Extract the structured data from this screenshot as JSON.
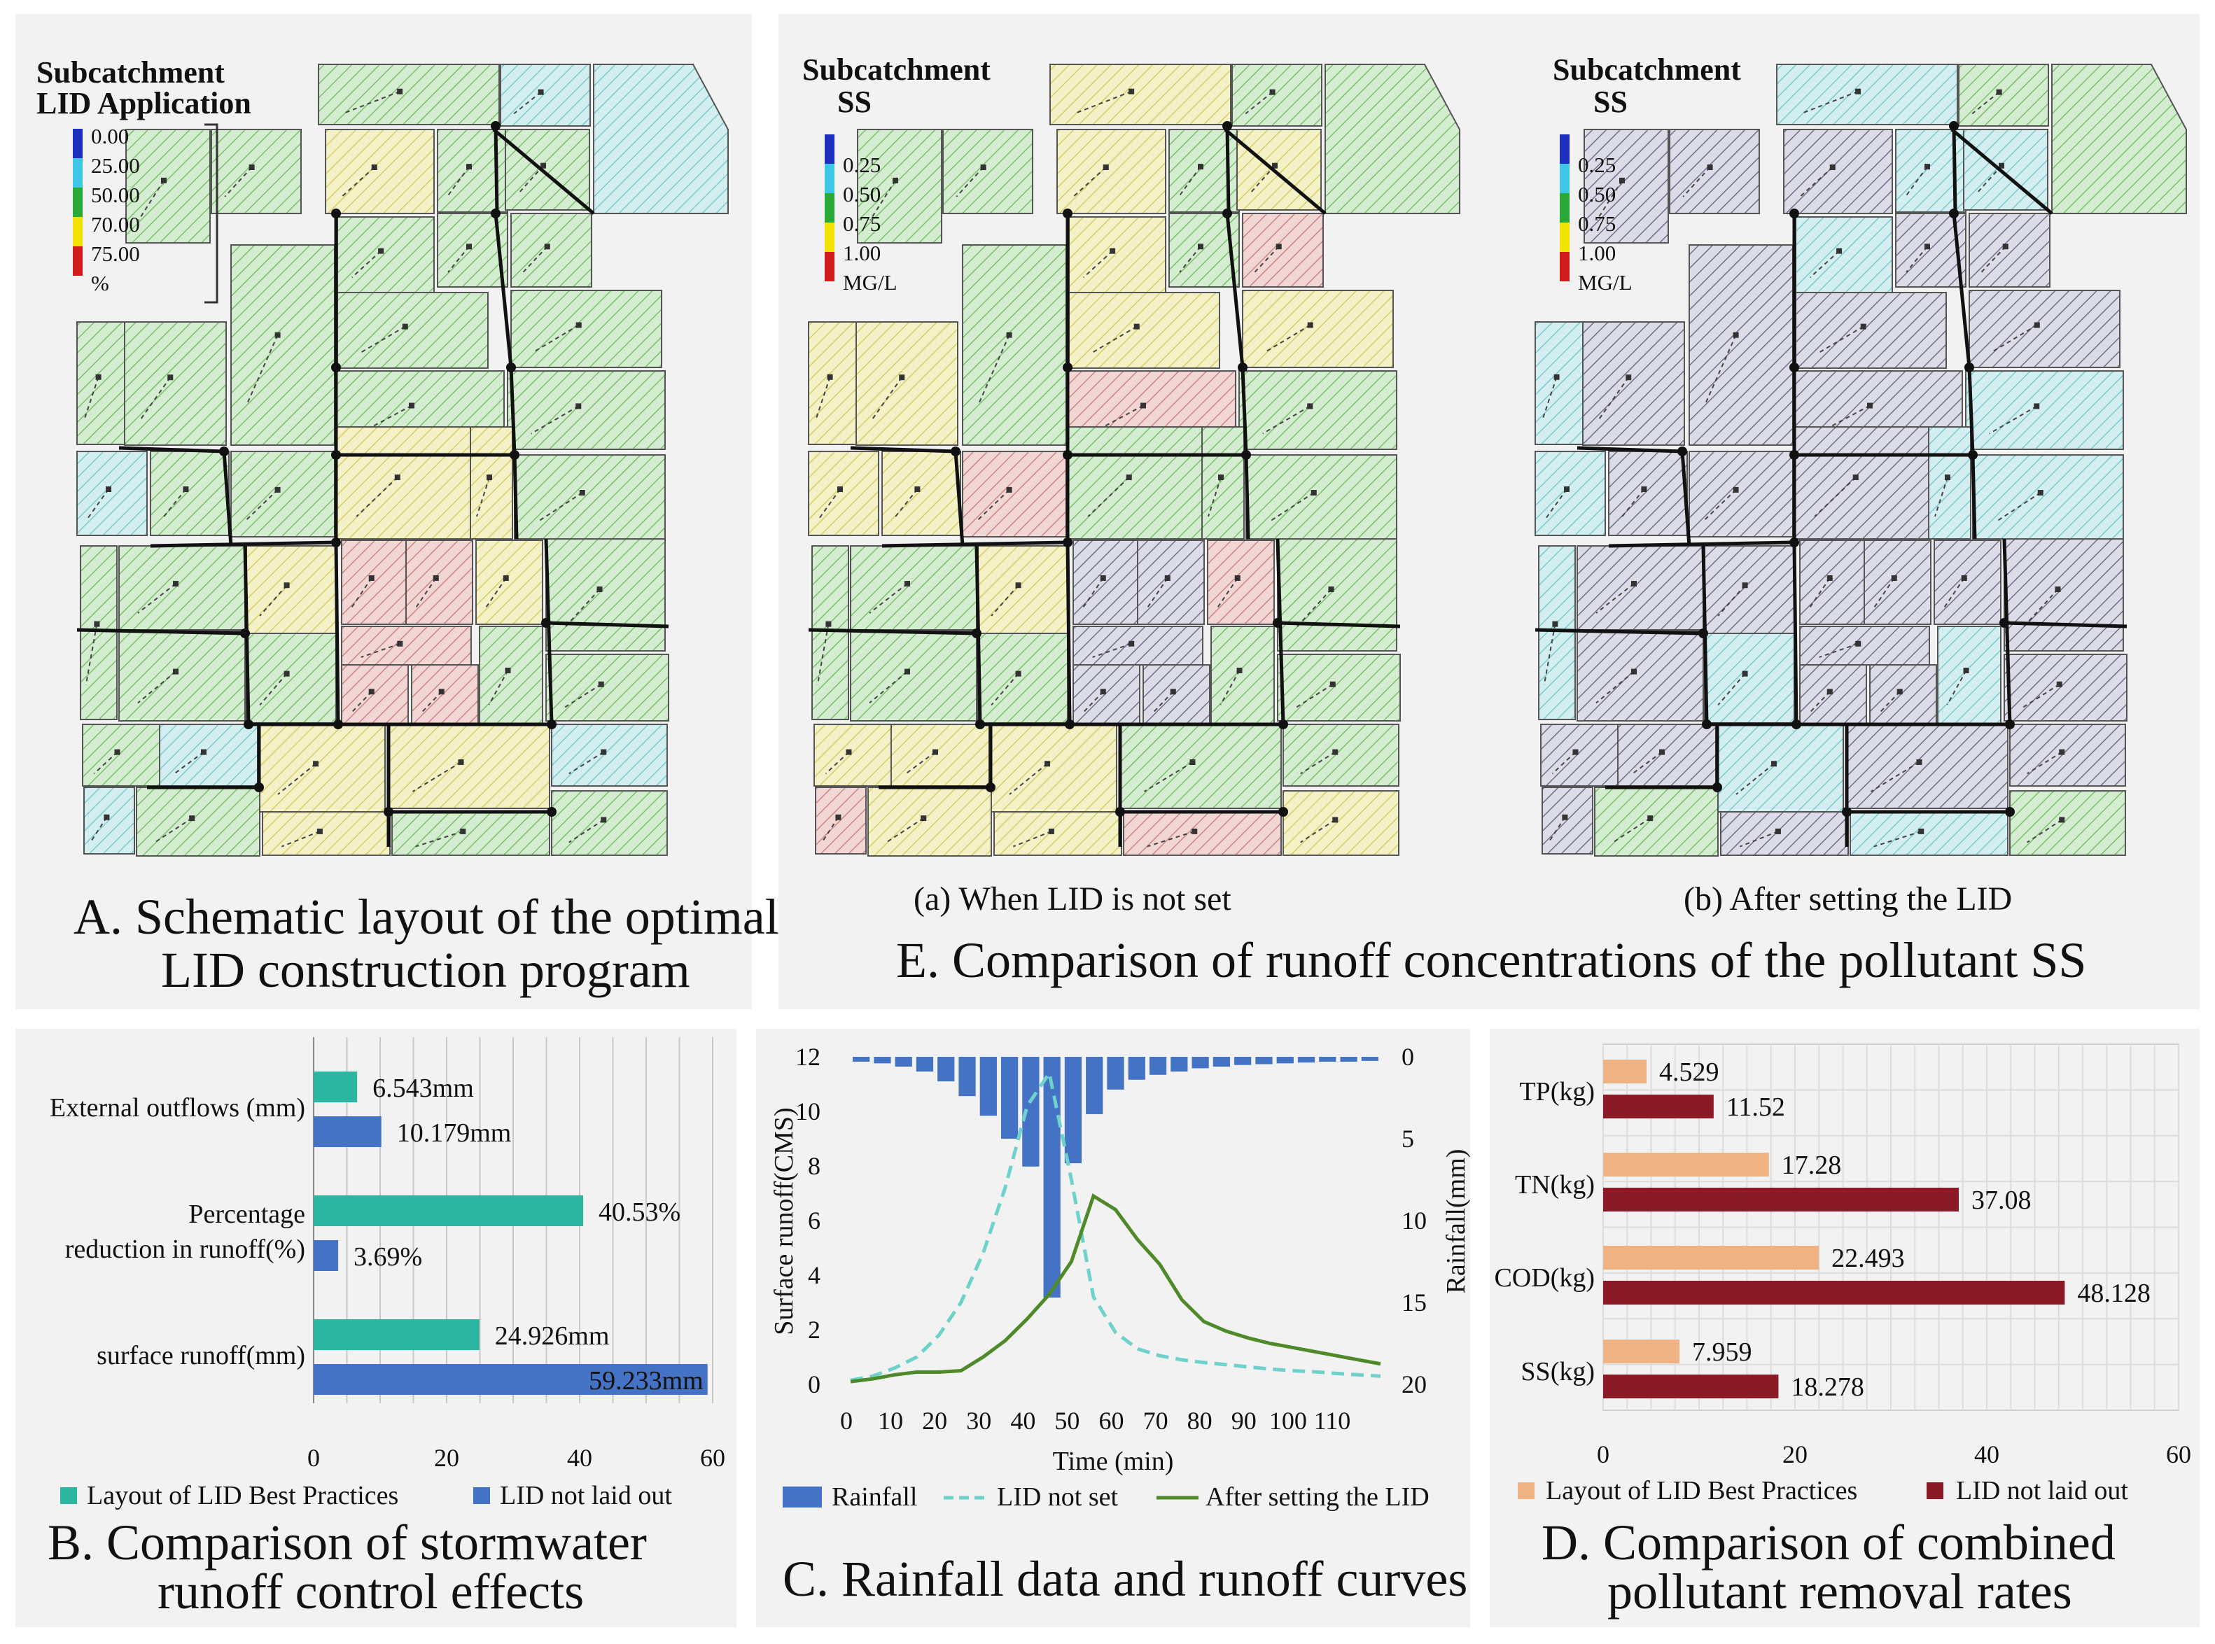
{
  "colors": {
    "green": "#2cb5a0",
    "blue": "#4472c4",
    "orange": "#f0b183",
    "darkred": "#8b1a26",
    "rain": "#4472c4",
    "lid_not_set": "#6fd1cc",
    "after_lid": "#4f8a2a",
    "map_bg": "#f2f2f2"
  },
  "panel_a": {
    "legend_title_1": "Subcatchment",
    "legend_title_2": "LID Application",
    "legend_values": [
      "0.00",
      "25.00",
      "50.00",
      "70.00",
      "75.00",
      "%"
    ],
    "caption_1": "A. Schematic layout of the optimal",
    "caption_2": "LID construction program"
  },
  "panel_e": {
    "map_a": {
      "legend_title_1": "Subcatchment",
      "legend_title_2": "SS",
      "legend_values": [
        "0.25",
        "0.50",
        "0.75",
        "1.00",
        "MG/L"
      ],
      "subcaption": "(a) When LID is not set"
    },
    "map_b": {
      "legend_title_1": "Subcatchment",
      "legend_title_2": "SS",
      "legend_values": [
        "0.25",
        "0.50",
        "0.75",
        "1.00",
        "MG/L"
      ],
      "subcaption": "(b) After setting the LID"
    },
    "caption": "E. Comparison of runoff concentrations of the pollutant SS"
  },
  "panel_b": {
    "caption_1": "B. Comparison of stormwater",
    "caption_2": "runoff control effects"
  },
  "panel_c": {
    "caption": "C. Rainfall data and runoff curves"
  },
  "panel_d": {
    "caption_1": "D. Comparison of combined",
    "caption_2": "pollutant removal rates"
  },
  "chart_data": [
    {
      "id": "B",
      "type": "bar",
      "orientation": "horizontal",
      "categories": [
        "External outflows (mm)",
        "Percentage reduction in runoff(%)",
        "surface runoff(mm)"
      ],
      "category_lines": [
        [
          "External outflows (mm)"
        ],
        [
          "Percentage",
          "reduction in runoff(%)"
        ],
        [
          "surface runoff(mm)"
        ]
      ],
      "series": [
        {
          "name": "Layout of LID Best Practices",
          "values": [
            6.543,
            40.53,
            24.926
          ],
          "labels": [
            "6.543mm",
            "40.53%",
            "24.926mm"
          ]
        },
        {
          "name": "LID not laid out",
          "values": [
            10.179,
            3.69,
            59.233
          ],
          "labels": [
            "10.179mm",
            "3.69%",
            "59.233mm"
          ]
        }
      ],
      "xlim": [
        0,
        60
      ],
      "xticks": [
        "0",
        "20",
        "40",
        "60"
      ]
    },
    {
      "id": "C",
      "type": "bar+line",
      "x": [
        0,
        5,
        10,
        15,
        20,
        25,
        30,
        35,
        40,
        45,
        50,
        55,
        60,
        65,
        70,
        75,
        80,
        85,
        90,
        95,
        100,
        105,
        110,
        115,
        120
      ],
      "xticks": [
        "0",
        "10",
        "20",
        "30",
        "40",
        "50",
        "60",
        "70",
        "80",
        "90",
        "100",
        "110"
      ],
      "xtick_values": [
        0,
        10,
        20,
        30,
        40,
        50,
        60,
        70,
        80,
        90,
        100,
        110
      ],
      "xlabel": "Time (min)",
      "ylabel": "Surface runoff(CMS)",
      "ylim": [
        0,
        12
      ],
      "yticks": [
        "0",
        "2",
        "4",
        "6",
        "8",
        "10",
        "12"
      ],
      "y2label": "Rainfall(mm)",
      "y2lim": [
        0,
        20
      ],
      "y2ticks": [
        "0",
        "5",
        "10",
        "15",
        "20"
      ],
      "y2_inverted": true,
      "series": [
        {
          "name": "Rainfall",
          "kind": "bar",
          "axis": "y2",
          "values": [
            0.3,
            0.4,
            0.6,
            0.9,
            1.5,
            2.4,
            3.6,
            5.0,
            6.7,
            14.7,
            6.5,
            3.5,
            2.0,
            1.4,
            1.1,
            0.9,
            0.7,
            0.6,
            0.5,
            0.45,
            0.4,
            0.35,
            0.3,
            0.3,
            0.25
          ]
        },
        {
          "name": "LID not set",
          "kind": "line",
          "style": "dashed",
          "values": [
            0.15,
            0.3,
            0.6,
            1.0,
            1.8,
            3.0,
            4.8,
            7.2,
            10.2,
            11.4,
            7.5,
            3.2,
            1.9,
            1.3,
            1.05,
            0.9,
            0.8,
            0.72,
            0.64,
            0.56,
            0.5,
            0.46,
            0.4,
            0.35,
            0.3
          ]
        },
        {
          "name": "After setting the LID",
          "kind": "line",
          "style": "solid",
          "values": [
            0.1,
            0.2,
            0.35,
            0.45,
            0.45,
            0.5,
            1.0,
            1.6,
            2.4,
            3.3,
            4.5,
            6.9,
            6.4,
            5.3,
            4.4,
            3.1,
            2.3,
            1.95,
            1.7,
            1.5,
            1.35,
            1.2,
            1.05,
            0.9,
            0.75
          ]
        }
      ]
    },
    {
      "id": "D",
      "type": "bar",
      "orientation": "horizontal",
      "categories": [
        "TP(kg)",
        "TN(kg)",
        "COD(kg)",
        "SS(kg)"
      ],
      "series": [
        {
          "name": "Layout of LID Best Practices",
          "values": [
            4.529,
            17.28,
            22.493,
            7.959
          ],
          "labels": [
            "4.529",
            "17.28",
            "22.493",
            "7.959"
          ]
        },
        {
          "name": "LID not laid out",
          "values": [
            11.52,
            37.08,
            48.128,
            18.278
          ],
          "labels": [
            "11.52",
            "37.08",
            "48.128",
            "18.278"
          ]
        }
      ],
      "xlim": [
        0,
        60
      ],
      "xticks": [
        "0",
        "20",
        "40",
        "60"
      ]
    }
  ]
}
